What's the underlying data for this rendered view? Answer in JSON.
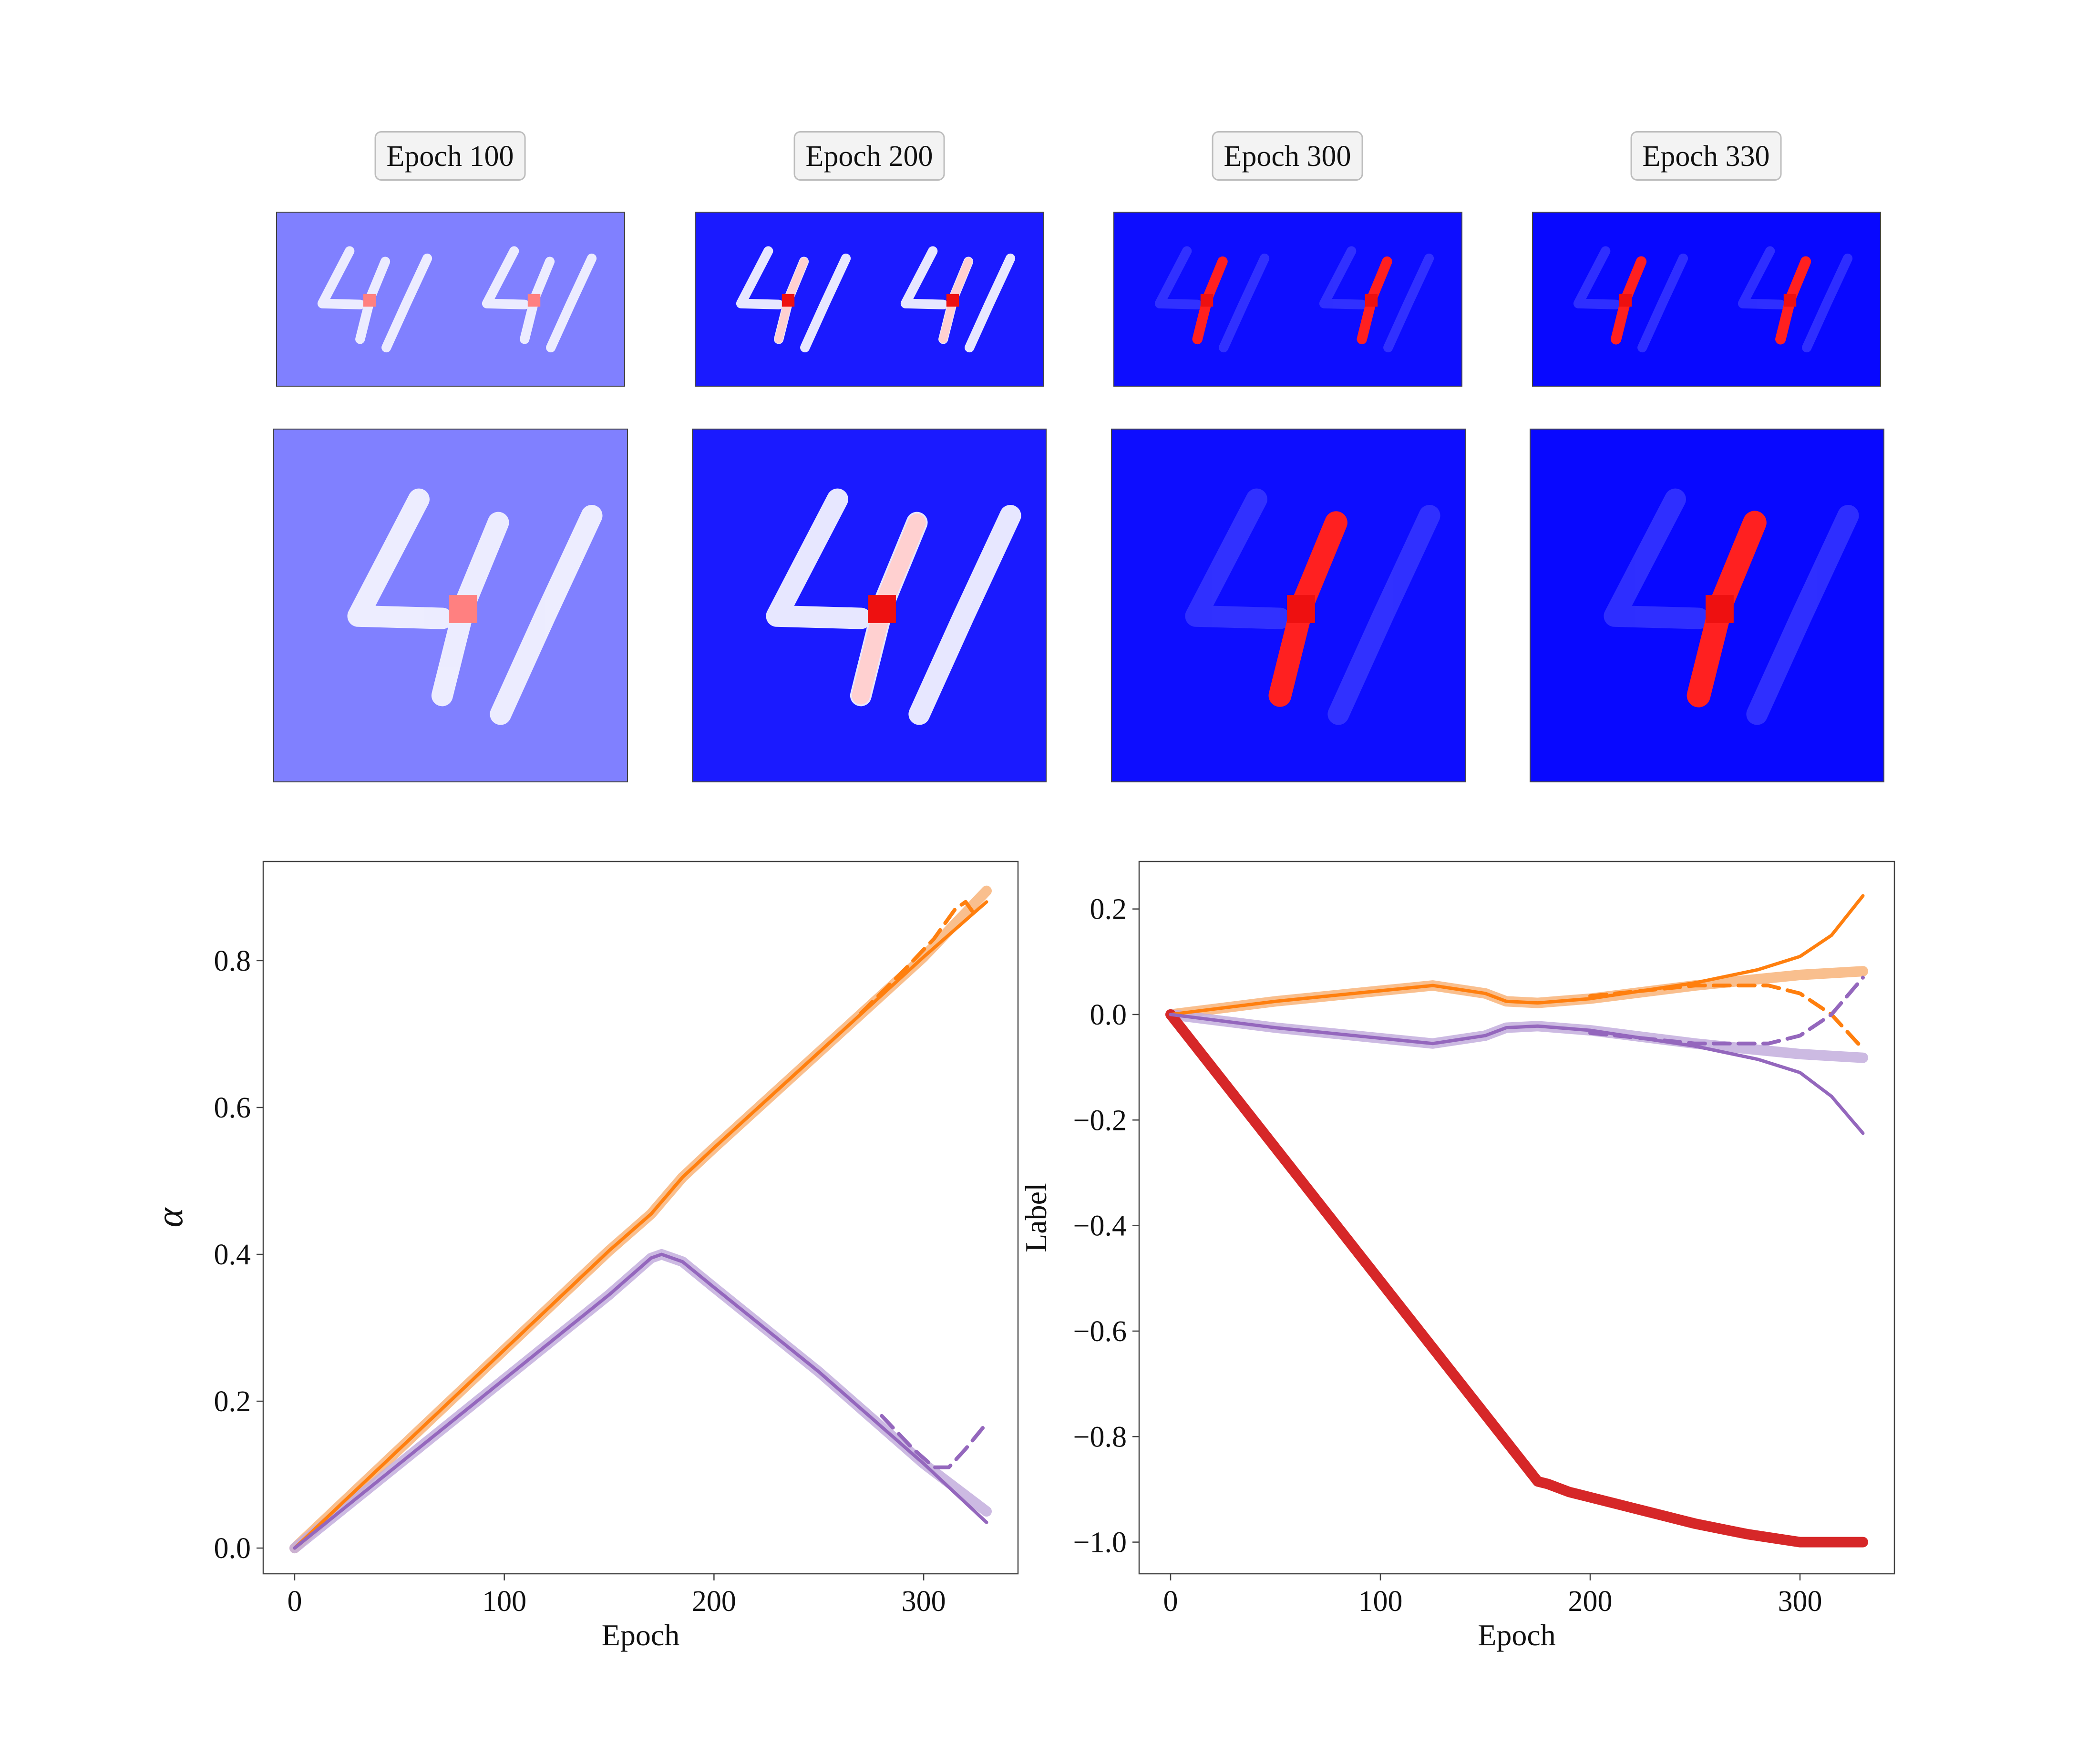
{
  "panels": {
    "titles": [
      "Epoch 100",
      "Epoch 200",
      "Epoch 300",
      "Epoch 330"
    ],
    "background_colors": [
      "#8080ff",
      "#1a1aff",
      "#0d0dff",
      "#0808ff"
    ],
    "red_stroke_intensity": [
      0.0,
      0.35,
      0.9,
      1.0
    ]
  },
  "chart_data": [
    {
      "type": "line",
      "ylabel": "α",
      "xlabel": "Epoch",
      "xlim": [
        -15,
        345
      ],
      "ylim": [
        -0.035,
        0.935
      ],
      "xticks": [
        0,
        100,
        200,
        300
      ],
      "yticks": [
        0.0,
        0.2,
        0.4,
        0.6,
        0.8
      ],
      "ytick_labels": [
        "0.0",
        "0.2",
        "0.4",
        "0.6",
        "0.8"
      ],
      "grid": false,
      "legend": "none",
      "series": [
        {
          "color": "#ff7f0e",
          "style": "solid-thin",
          "x": [
            0,
            50,
            100,
            150,
            170,
            185,
            200,
            250,
            300,
            330
          ],
          "y": [
            0,
            0.135,
            0.27,
            0.405,
            0.455,
            0.505,
            0.545,
            0.675,
            0.805,
            0.88
          ]
        },
        {
          "color": "#f8b47a",
          "style": "solid-thick",
          "x": [
            0,
            50,
            100,
            150,
            170,
            185,
            200,
            250,
            300,
            330
          ],
          "y": [
            0,
            0.135,
            0.27,
            0.405,
            0.455,
            0.505,
            0.545,
            0.675,
            0.805,
            0.895
          ]
        },
        {
          "color": "#ff7f0e",
          "style": "dashed",
          "x": [
            270,
            290,
            305,
            315,
            320,
            325
          ],
          "y": [
            0.728,
            0.785,
            0.83,
            0.87,
            0.88,
            0.86
          ]
        },
        {
          "color": "#9467bd",
          "style": "solid-thin",
          "x": [
            0,
            50,
            100,
            150,
            170,
            175,
            185,
            200,
            250,
            300,
            330
          ],
          "y": [
            0,
            0.115,
            0.23,
            0.345,
            0.395,
            0.4,
            0.39,
            0.355,
            0.24,
            0.115,
            0.035
          ]
        },
        {
          "color": "#c3aedd",
          "style": "solid-thick",
          "x": [
            0,
            50,
            100,
            150,
            170,
            175,
            185,
            200,
            250,
            300,
            330
          ],
          "y": [
            0,
            0.115,
            0.23,
            0.345,
            0.395,
            0.4,
            0.39,
            0.355,
            0.24,
            0.115,
            0.05
          ]
        },
        {
          "color": "#9467bd",
          "style": "dashed",
          "x": [
            280,
            295,
            305,
            312,
            320,
            330
          ],
          "y": [
            0.18,
            0.135,
            0.11,
            0.11,
            0.135,
            0.17
          ]
        }
      ]
    },
    {
      "type": "line",
      "ylabel": "Label",
      "xlabel": "Epoch",
      "xlim": [
        -15,
        345
      ],
      "ylim": [
        -1.06,
        0.29
      ],
      "xticks": [
        0,
        100,
        200,
        300
      ],
      "yticks": [
        0.2,
        0.0,
        -0.2,
        -0.4,
        -0.6,
        -0.8,
        -1.0
      ],
      "ytick_labels": [
        "0.2",
        "0.0",
        "−0.2",
        "−0.4",
        "−0.6",
        "−0.8",
        "−1.0"
      ],
      "grid": false,
      "legend": "none",
      "series": [
        {
          "color": "#f8b47a",
          "style": "solid-thick",
          "x": [
            0,
            50,
            100,
            125,
            150,
            160,
            175,
            200,
            250,
            300,
            330
          ],
          "y": [
            0,
            0.025,
            0.045,
            0.055,
            0.04,
            0.025,
            0.022,
            0.03,
            0.055,
            0.075,
            0.082
          ]
        },
        {
          "color": "#ff7f0e",
          "style": "solid-thin",
          "x": [
            0,
            50,
            100,
            125,
            150,
            160,
            175,
            200,
            250,
            280,
            300,
            315,
            330
          ],
          "y": [
            0,
            0.025,
            0.045,
            0.055,
            0.04,
            0.025,
            0.022,
            0.03,
            0.06,
            0.085,
            0.11,
            0.15,
            0.225
          ]
        },
        {
          "color": "#ff7f0e",
          "style": "dashed",
          "x": [
            200,
            250,
            285,
            300,
            315,
            330
          ],
          "y": [
            0.035,
            0.055,
            0.055,
            0.04,
            0.0,
            -0.065
          ]
        },
        {
          "color": "#c3aedd",
          "style": "solid-thick",
          "x": [
            0,
            50,
            100,
            125,
            150,
            160,
            175,
            200,
            250,
            300,
            330
          ],
          "y": [
            0,
            -0.025,
            -0.045,
            -0.055,
            -0.04,
            -0.025,
            -0.022,
            -0.03,
            -0.055,
            -0.075,
            -0.082
          ]
        },
        {
          "color": "#9467bd",
          "style": "solid-thin",
          "x": [
            0,
            50,
            100,
            125,
            150,
            160,
            175,
            200,
            250,
            280,
            300,
            315,
            330
          ],
          "y": [
            0,
            -0.025,
            -0.045,
            -0.055,
            -0.04,
            -0.025,
            -0.022,
            -0.03,
            -0.06,
            -0.085,
            -0.11,
            -0.155,
            -0.225
          ]
        },
        {
          "color": "#9467bd",
          "style": "dashed",
          "x": [
            200,
            250,
            285,
            300,
            315,
            330
          ],
          "y": [
            -0.035,
            -0.055,
            -0.055,
            -0.04,
            0.0,
            0.07
          ]
        },
        {
          "color": "#d62728",
          "style": "solid-bold",
          "x": [
            0,
            175,
            180,
            190,
            200,
            225,
            250,
            275,
            300,
            330
          ],
          "y": [
            0,
            -0.885,
            -0.89,
            -0.905,
            -0.915,
            -0.94,
            -0.965,
            -0.985,
            -1.0,
            -1.0
          ]
        }
      ]
    }
  ]
}
